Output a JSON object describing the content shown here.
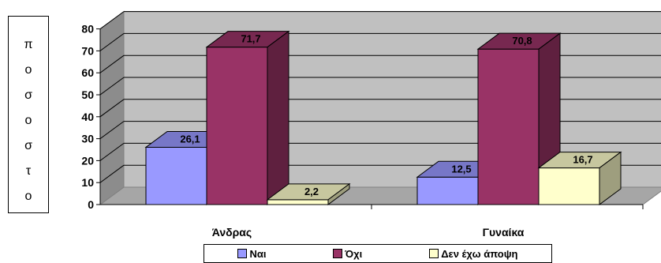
{
  "y_axis_label_chars": [
    "π",
    "ο",
    "σ",
    "ο",
    "σ",
    "τ",
    "ο"
  ],
  "chart_data": {
    "type": "bar",
    "categories": [
      "Άνδρας",
      "Γυναίκα"
    ],
    "series": [
      {
        "name": "Ναι",
        "values": [
          26.1,
          12.5
        ],
        "color": "#9999ff"
      },
      {
        "name": "Όχι",
        "values": [
          71.7,
          70.8
        ],
        "color": "#993366"
      },
      {
        "name": "Δεν έχω άποψη",
        "values": [
          2.2,
          16.7
        ],
        "color": "#ffffcc"
      }
    ],
    "data_labels": [
      [
        "26,1",
        "12,5"
      ],
      [
        "71,7",
        "70,8"
      ],
      [
        "2,2",
        "16,7"
      ]
    ],
    "yticks": [
      "0",
      "10",
      "20",
      "30",
      "40",
      "50",
      "60",
      "70",
      "80"
    ],
    "ylim": [
      0,
      80
    ],
    "grid": true,
    "legend_position": "bottom",
    "style": "3d-clustered-column"
  }
}
